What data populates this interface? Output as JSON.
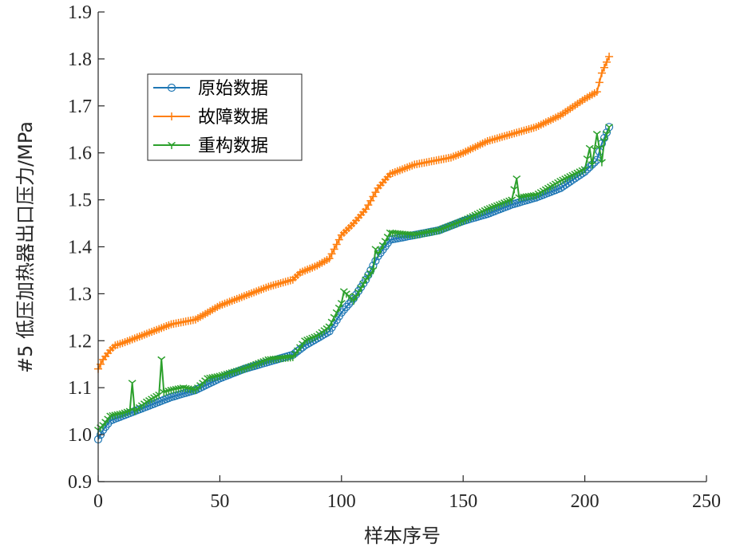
{
  "chart_data": {
    "type": "line",
    "xlabel": "样本序号",
    "ylabel": "#5 低压加热器出口压力/MPa",
    "xlim": [
      0,
      250
    ],
    "ylim": [
      0.9,
      1.9
    ],
    "xticks": [
      "0",
      "50",
      "100",
      "150",
      "200",
      "250"
    ],
    "yticks": [
      "0.9",
      "1.0",
      "1.1",
      "1.2",
      "1.3",
      "1.4",
      "1.5",
      "1.6",
      "1.7",
      "1.8",
      "1.9"
    ],
    "legend_position": "top-left",
    "grid": false,
    "series": [
      {
        "name": "原始数据",
        "color": "#1f77b4",
        "marker": "circle",
        "x": [
          0,
          2,
          5,
          10,
          20,
          30,
          40,
          50,
          60,
          70,
          80,
          85,
          90,
          95,
          100,
          105,
          110,
          115,
          120,
          130,
          140,
          150,
          160,
          170,
          180,
          190,
          200,
          205,
          207,
          210
        ],
        "y": [
          0.99,
          1.01,
          1.03,
          1.04,
          1.06,
          1.08,
          1.095,
          1.12,
          1.14,
          1.155,
          1.17,
          1.19,
          1.205,
          1.22,
          1.26,
          1.29,
          1.33,
          1.38,
          1.415,
          1.425,
          1.435,
          1.455,
          1.47,
          1.49,
          1.505,
          1.525,
          1.56,
          1.585,
          1.62,
          1.655
        ]
      },
      {
        "name": "故障数据",
        "color": "#ff7f0e",
        "marker": "plus",
        "x": [
          0,
          2,
          5,
          7,
          10,
          20,
          30,
          40,
          50,
          60,
          70,
          80,
          83,
          90,
          95,
          97,
          100,
          105,
          110,
          115,
          120,
          130,
          140,
          145,
          150,
          160,
          170,
          180,
          190,
          200,
          205,
          207,
          210
        ],
        "y": [
          1.14,
          1.16,
          1.18,
          1.19,
          1.195,
          1.215,
          1.235,
          1.245,
          1.275,
          1.295,
          1.315,
          1.33,
          1.345,
          1.36,
          1.375,
          1.395,
          1.425,
          1.45,
          1.48,
          1.525,
          1.555,
          1.575,
          1.585,
          1.59,
          1.6,
          1.625,
          1.64,
          1.655,
          1.68,
          1.715,
          1.73,
          1.77,
          1.805
        ]
      },
      {
        "name": "重构数据",
        "color": "#2ca02c",
        "marker": "tri_down",
        "x": [
          0,
          2,
          5,
          10,
          13,
          14,
          15,
          20,
          25,
          26,
          27,
          30,
          35,
          40,
          45,
          50,
          60,
          70,
          80,
          85,
          90,
          95,
          100,
          101,
          105,
          110,
          113,
          114,
          115,
          120,
          130,
          140,
          150,
          160,
          170,
          172,
          173,
          180,
          190,
          200,
          202,
          203,
          205,
          207,
          208,
          210
        ],
        "y": [
          1.01,
          1.02,
          1.04,
          1.045,
          1.05,
          1.11,
          1.05,
          1.07,
          1.085,
          1.16,
          1.09,
          1.095,
          1.1,
          1.095,
          1.12,
          1.125,
          1.14,
          1.16,
          1.165,
          1.2,
          1.21,
          1.23,
          1.28,
          1.305,
          1.285,
          1.33,
          1.35,
          1.395,
          1.385,
          1.43,
          1.425,
          1.435,
          1.455,
          1.48,
          1.5,
          1.545,
          1.505,
          1.51,
          1.54,
          1.565,
          1.61,
          1.575,
          1.64,
          1.58,
          1.625,
          1.655
        ]
      }
    ]
  }
}
